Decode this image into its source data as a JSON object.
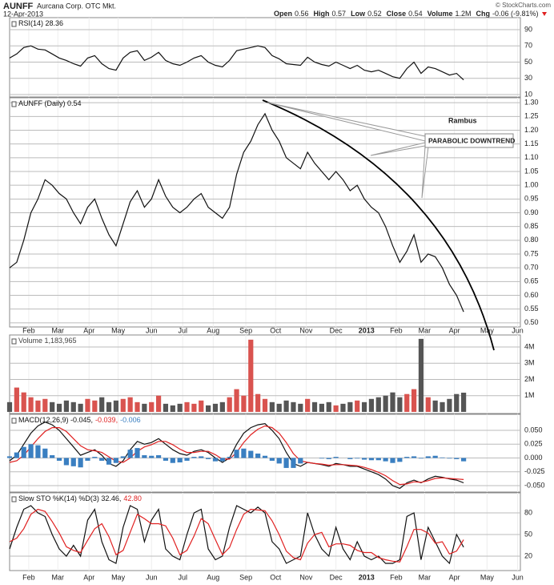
{
  "header": {
    "symbol": "AUNFF",
    "company": "Aurcana Corp. OTC Mkt.",
    "date": "12-Apr-2013",
    "copyright": "© StockCharts.com",
    "quote": [
      {
        "label": "Open",
        "value": "0.56"
      },
      {
        "label": "High",
        "value": "0.57"
      },
      {
        "label": "Low",
        "value": "0.52"
      },
      {
        "label": "Close",
        "value": "0.54"
      },
      {
        "label": "Volume",
        "value": "1.2M"
      },
      {
        "label": "Chg",
        "value": "-0.06 (-9.81%)"
      }
    ]
  },
  "chart_data": [
    {
      "type": "line",
      "label_parts": [
        "RSI(14) 28.36"
      ],
      "xlim": [
        0,
        72
      ],
      "ylim": [
        7,
        104.8
      ],
      "yticks": [
        90,
        70,
        50,
        30,
        10
      ],
      "series": [
        {
          "name": "RSI(14)",
          "color": "#111",
          "values": [
            55,
            60,
            68,
            70,
            66,
            65,
            60,
            55,
            52,
            48,
            45,
            55,
            58,
            48,
            42,
            40,
            55,
            62,
            64,
            52,
            56,
            62,
            52,
            48,
            46,
            50,
            55,
            58,
            50,
            46,
            44,
            52,
            64,
            66,
            68,
            70,
            68,
            58,
            54,
            48,
            47,
            46,
            56,
            50,
            47,
            45,
            50,
            46,
            42,
            46,
            40,
            38,
            40,
            36,
            32,
            30,
            42,
            50,
            36,
            44,
            42,
            38,
            34,
            36,
            28
          ]
        }
      ]
    },
    {
      "type": "line",
      "label_parts": [
        "AUNFF (Daily) 0.54"
      ],
      "xlim": [
        0,
        72
      ],
      "ylim": [
        0.485,
        1.318
      ],
      "yticks": [
        {
          "value": 1.3,
          "label": "1.30"
        },
        1.25,
        {
          "value": 1.2,
          "label": "1.20"
        },
        1.15,
        {
          "value": 1.1,
          "label": "1.10"
        },
        1.05,
        {
          "value": 1.0,
          "label": "1.00"
        },
        0.95,
        {
          "value": 0.9,
          "label": "0.90"
        },
        0.85,
        {
          "value": 0.8,
          "label": "0.80"
        },
        0.75,
        {
          "value": 0.7,
          "label": "0.70"
        },
        0.65,
        {
          "value": 0.6,
          "label": "0.60"
        },
        0.55,
        {
          "value": 0.5,
          "label": "0.50"
        }
      ],
      "xticks": [
        {
          "value": 2.7,
          "label": "Feb"
        },
        {
          "value": 6.8,
          "label": "Mar"
        },
        {
          "value": 11.2,
          "label": "Apr"
        },
        {
          "value": 15.3,
          "label": "May"
        },
        {
          "value": 20.0,
          "label": "Jun"
        },
        {
          "value": 24.4,
          "label": "Jul"
        },
        {
          "value": 28.7,
          "label": "Aug"
        },
        {
          "value": 33.3,
          "label": "Sep"
        },
        {
          "value": 37.5,
          "label": "Oct"
        },
        {
          "value": 41.8,
          "label": "Nov"
        },
        {
          "value": 46.0,
          "label": "Dec"
        },
        {
          "value": 50.3,
          "label": "2013"
        },
        {
          "value": 54.5,
          "label": "Feb"
        },
        {
          "value": 58.5,
          "label": "Mar"
        },
        {
          "value": 62.7,
          "label": "Apr"
        },
        {
          "value": 67.3,
          "label": "May"
        },
        {
          "value": 71.6,
          "label": "Jun"
        }
      ],
      "annotations": [
        "Rambus",
        "PARABOLIC DOWNTREND"
      ],
      "series": [
        {
          "name": "AUNFF",
          "color": "#111",
          "values": [
            0.7,
            0.72,
            0.8,
            0.9,
            0.95,
            1.02,
            1.0,
            0.97,
            0.95,
            0.9,
            0.86,
            0.92,
            0.95,
            0.88,
            0.82,
            0.78,
            0.86,
            0.94,
            0.98,
            0.92,
            0.95,
            1.02,
            0.96,
            0.92,
            0.9,
            0.92,
            0.95,
            0.97,
            0.92,
            0.9,
            0.88,
            0.92,
            1.04,
            1.12,
            1.16,
            1.22,
            1.26,
            1.2,
            1.16,
            1.1,
            1.08,
            1.06,
            1.12,
            1.08,
            1.05,
            1.02,
            1.05,
            1.02,
            0.98,
            1.0,
            0.95,
            0.92,
            0.9,
            0.85,
            0.78,
            0.72,
            0.76,
            0.82,
            0.72,
            0.75,
            0.74,
            0.7,
            0.64,
            0.6,
            0.54
          ]
        }
      ]
    },
    {
      "type": "bar",
      "label_parts": [
        "Volume 1,183,965"
      ],
      "xlim": [
        0,
        72
      ],
      "ylim": [
        -100000,
        4740000
      ],
      "yticks": [
        {
          "value": 4000000,
          "label": "4M"
        },
        {
          "value": 3000000,
          "label": "3M"
        },
        {
          "value": 2000000,
          "label": "2M"
        },
        {
          "value": 1000000,
          "label": "1M"
        }
      ],
      "series": [
        {
          "name": "Volume",
          "color": "#444",
          "up_color": "#d9534f",
          "down_color": "#555",
          "values": [
            600000,
            1500000,
            1200000,
            900000,
            700000,
            800000,
            600000,
            500000,
            700000,
            600000,
            500000,
            800000,
            700000,
            900000,
            600000,
            700000,
            800000,
            900000,
            600000,
            500000,
            600000,
            1000000,
            500000,
            400000,
            500000,
            600000,
            500000,
            700000,
            400000,
            500000,
            600000,
            900000,
            1400000,
            1000000,
            4450000,
            1100000,
            800000,
            600000,
            500000,
            700000,
            600000,
            500000,
            800000,
            600000,
            500000,
            600000,
            400000,
            500000,
            600000,
            700000,
            600000,
            800000,
            900000,
            1000000,
            1200000,
            900000,
            1100000,
            1400000,
            4500000,
            900000,
            700000,
            600000,
            800000,
            1100000,
            1183965
          ]
        }
      ]
    },
    {
      "type": "line",
      "label_parts": [
        "MACD(12,26,9) -0.045,",
        "-0.039,",
        "-0.006"
      ],
      "xlim": [
        0,
        72
      ],
      "ylim": [
        -0.0616,
        0.079
      ],
      "yticks": [
        {
          "value": 0.05,
          "label": "0.050"
        },
        0.025,
        {
          "value": 0,
          "label": "0.000"
        },
        -0.025,
        {
          "value": -0.05,
          "label": "-0.050"
        }
      ],
      "series": [
        {
          "name": "MACD",
          "color": "#111",
          "values": [
            -0.005,
            0.005,
            0.025,
            0.045,
            0.058,
            0.065,
            0.06,
            0.05,
            0.035,
            0.02,
            0.005,
            0.01,
            0.015,
            0.005,
            -0.01,
            -0.015,
            -0.005,
            0.015,
            0.03,
            0.025,
            0.028,
            0.035,
            0.025,
            0.015,
            0.008,
            0.005,
            0.012,
            0.015,
            0.01,
            0.0,
            -0.008,
            0.0,
            0.025,
            0.045,
            0.055,
            0.06,
            0.062,
            0.05,
            0.035,
            0.01,
            -0.01,
            -0.015,
            -0.008,
            -0.01,
            -0.012,
            -0.015,
            -0.01,
            -0.012,
            -0.015,
            -0.015,
            -0.02,
            -0.025,
            -0.03,
            -0.038,
            -0.05,
            -0.055,
            -0.045,
            -0.04,
            -0.045,
            -0.038,
            -0.033,
            -0.035,
            -0.038,
            -0.04,
            -0.045
          ]
        },
        {
          "name": "Signal",
          "color": "#e02020",
          "values": [
            -0.008,
            -0.005,
            0.005,
            0.02,
            0.035,
            0.048,
            0.055,
            0.055,
            0.048,
            0.035,
            0.022,
            0.015,
            0.013,
            0.01,
            0.002,
            -0.006,
            -0.008,
            0.0,
            0.012,
            0.02,
            0.024,
            0.03,
            0.03,
            0.024,
            0.016,
            0.01,
            0.01,
            0.012,
            0.012,
            0.006,
            -0.002,
            -0.002,
            0.01,
            0.028,
            0.042,
            0.052,
            0.058,
            0.055,
            0.045,
            0.028,
            0.008,
            -0.005,
            -0.008,
            -0.01,
            -0.011,
            -0.013,
            -0.012,
            -0.012,
            -0.013,
            -0.014,
            -0.017,
            -0.021,
            -0.026,
            -0.032,
            -0.041,
            -0.048,
            -0.047,
            -0.043,
            -0.044,
            -0.041,
            -0.037,
            -0.036,
            -0.037,
            -0.038,
            -0.039
          ]
        },
        {
          "name": "Histogram",
          "type": "bar",
          "color": "#3a7fc1",
          "values": [
            0.003,
            0.01,
            0.02,
            0.025,
            0.023,
            0.017,
            0.005,
            -0.005,
            -0.013,
            -0.015,
            -0.017,
            -0.005,
            0.002,
            -0.005,
            -0.012,
            -0.009,
            0.003,
            0.015,
            0.018,
            0.005,
            0.004,
            0.005,
            -0.005,
            -0.009,
            -0.008,
            -0.005,
            0.002,
            0.003,
            -0.002,
            -0.006,
            -0.006,
            0.002,
            0.015,
            0.017,
            0.013,
            0.008,
            0.004,
            -0.005,
            -0.01,
            -0.018,
            -0.018,
            -0.01,
            0.0,
            0.0,
            -0.001,
            -0.002,
            0.002,
            0.0,
            -0.002,
            -0.001,
            -0.003,
            -0.004,
            -0.004,
            -0.006,
            -0.009,
            -0.007,
            0.002,
            0.003,
            -0.001,
            0.003,
            0.004,
            0.001,
            -0.001,
            -0.002,
            -0.006
          ]
        }
      ]
    },
    {
      "type": "line",
      "label_parts": [
        "Slow STO %K(14) %D(3) 32.46,",
        "42.80"
      ],
      "xlim": [
        0,
        72
      ],
      "ylim": [
        0,
        107.8
      ],
      "yticks": [
        80,
        50,
        20
      ],
      "xticks": [
        {
          "value": 2.7,
          "label": "Feb"
        },
        {
          "value": 6.8,
          "label": "Mar"
        },
        {
          "value": 11.2,
          "label": "Apr"
        },
        {
          "value": 15.3,
          "label": "May"
        },
        {
          "value": 20.0,
          "label": "Jun"
        },
        {
          "value": 24.4,
          "label": "Jul"
        },
        {
          "value": 28.7,
          "label": "Aug"
        },
        {
          "value": 33.3,
          "label": "Sep"
        },
        {
          "value": 37.5,
          "label": "Oct"
        },
        {
          "value": 41.8,
          "label": "Nov"
        },
        {
          "value": 46.0,
          "label": "Dec"
        },
        {
          "value": 50.3,
          "label": "2013"
        },
        {
          "value": 54.5,
          "label": "Feb"
        },
        {
          "value": 58.5,
          "label": "Mar"
        },
        {
          "value": 62.7,
          "label": "Apr"
        },
        {
          "value": 67.3,
          "label": "May"
        },
        {
          "value": 71.6,
          "label": "Jun"
        }
      ],
      "series": [
        {
          "name": "%K",
          "color": "#111",
          "values": [
            30,
            60,
            85,
            90,
            80,
            75,
            50,
            30,
            20,
            35,
            20,
            70,
            85,
            40,
            15,
            10,
            60,
            90,
            85,
            40,
            70,
            85,
            30,
            20,
            15,
            50,
            80,
            85,
            30,
            15,
            20,
            60,
            90,
            85,
            80,
            88,
            80,
            40,
            30,
            10,
            15,
            20,
            80,
            50,
            30,
            20,
            60,
            30,
            15,
            40,
            20,
            15,
            20,
            10,
            10,
            15,
            75,
            80,
            15,
            60,
            40,
            20,
            10,
            50,
            32.46
          ]
        },
        {
          "name": "%D",
          "color": "#e02020",
          "values": [
            40,
            45,
            58,
            78,
            85,
            82,
            68,
            52,
            33,
            28,
            25,
            42,
            58,
            65,
            47,
            22,
            28,
            53,
            78,
            72,
            65,
            65,
            62,
            45,
            22,
            28,
            48,
            72,
            65,
            43,
            22,
            32,
            57,
            78,
            85,
            84,
            83,
            69,
            50,
            27,
            18,
            15,
            38,
            50,
            53,
            33,
            37,
            37,
            35,
            28,
            25,
            25,
            18,
            15,
            13,
            12,
            33,
            57,
            57,
            52,
            38,
            40,
            23,
            27,
            42.8
          ]
        }
      ]
    }
  ]
}
